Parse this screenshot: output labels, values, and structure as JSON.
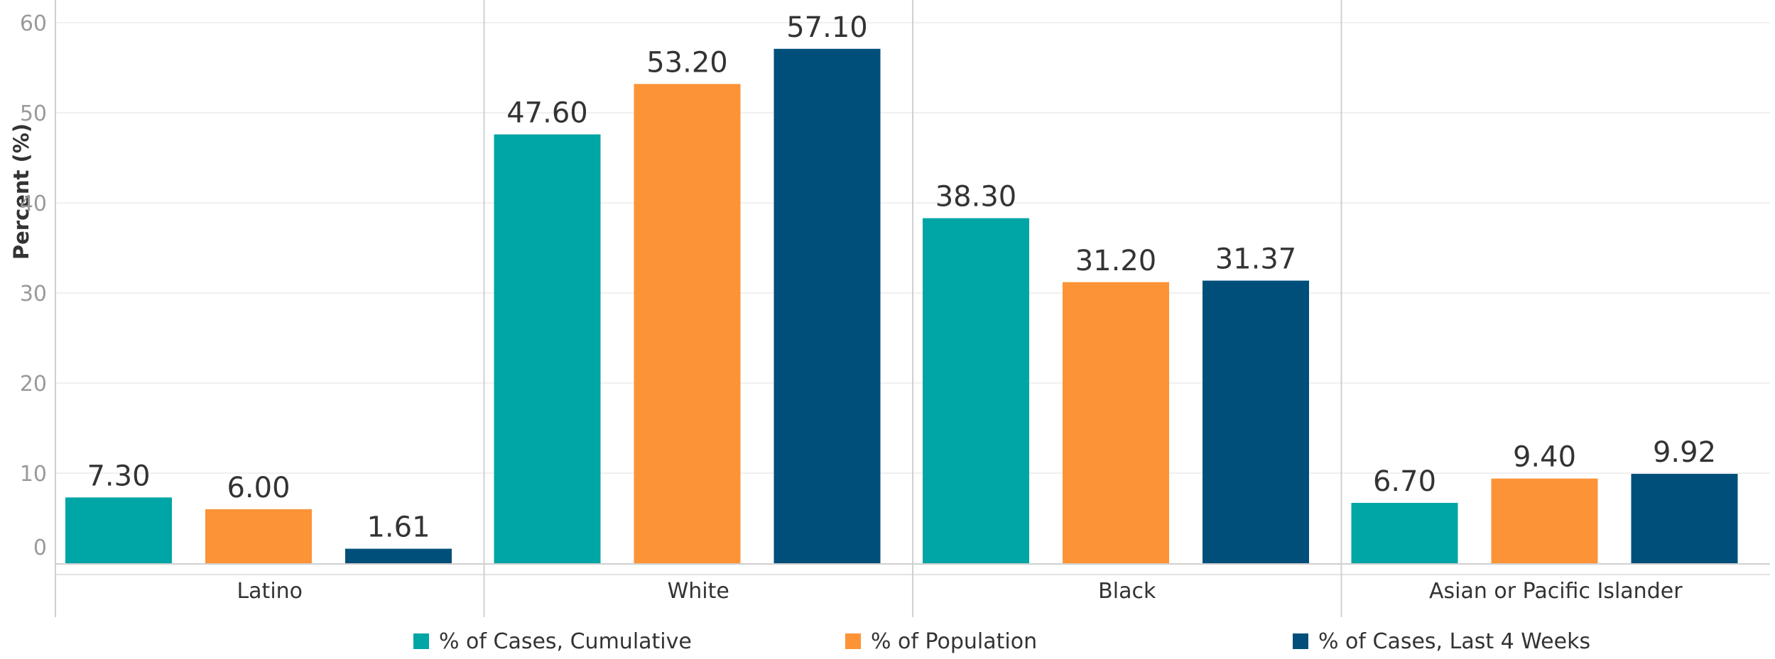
{
  "chart_data": {
    "type": "bar",
    "title": "",
    "xlabel": "",
    "ylabel": "Percent (%)",
    "ylim": [
      0,
      64
    ],
    "yticks": [
      0,
      10,
      20,
      30,
      40,
      50,
      60
    ],
    "grid": true,
    "legend_position": "bottom",
    "categories": [
      "Latino",
      "White",
      "Black",
      "Asian or Pacific Islander"
    ],
    "series": [
      {
        "name": "% of Cases, Cumulative",
        "color": "#00a5a5",
        "values": [
          7.3,
          47.6,
          38.3,
          6.7
        ],
        "labels": [
          "7.30",
          "47.60",
          "38.30",
          "6.70"
        ]
      },
      {
        "name": "% of Population",
        "color": "#fd9337",
        "values": [
          6.0,
          53.2,
          31.2,
          9.4
        ],
        "labels": [
          "6.00",
          "53.20",
          "31.20",
          "9.40"
        ]
      },
      {
        "name": "% of Cases, Last 4 Weeks",
        "color": "#004f7b",
        "values": [
          1.61,
          57.1,
          31.37,
          9.92
        ],
        "labels": [
          "1.61",
          "57.10",
          "31.37",
          "9.92"
        ]
      }
    ]
  }
}
